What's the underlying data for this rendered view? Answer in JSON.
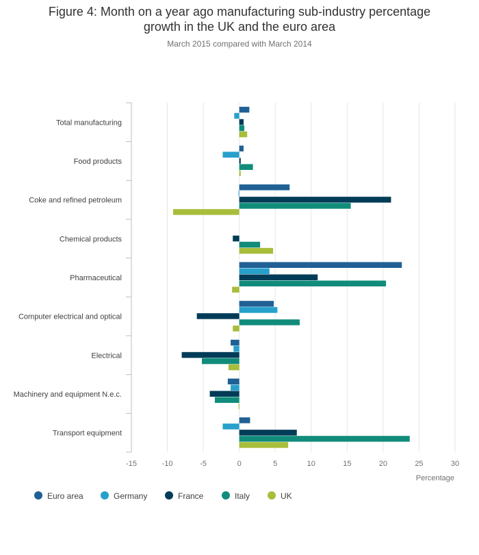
{
  "header": {
    "title_line1": "Figure 4: Month on a year ago manufacturing sub-industry percentage",
    "title_line2": "growth in the UK and the euro area",
    "subtitle": "March 2015 compared with March 2014"
  },
  "chart_data": {
    "type": "bar",
    "orientation": "horizontal",
    "title": "Figure 4: Month on a year ago manufacturing sub-industry percentage growth in the UK and the euro area",
    "subtitle": "March 2015 compared with March 2014",
    "xlabel": "Percentage",
    "ylabel": "",
    "xlim": [
      -15,
      30
    ],
    "xticks": [
      -15,
      -10,
      -5,
      0,
      5,
      10,
      15,
      20,
      25,
      30
    ],
    "grid": true,
    "legend_position": "bottom",
    "categories": [
      "Total manufacturing",
      "Food products",
      "Coke and refined petroleum",
      "Chemical products",
      "Pharmaceutical",
      "Computer electrical and optical",
      "Electrical",
      "Machinery and equipment N.e.c.",
      "Transport equipment"
    ],
    "series": [
      {
        "name": "Euro area",
        "color": "#206095",
        "values": [
          1.4,
          0.6,
          7.0,
          0.0,
          22.6,
          4.8,
          -1.2,
          -1.6,
          1.5
        ]
      },
      {
        "name": "Germany",
        "color": "#27a0cc",
        "values": [
          -0.7,
          -2.3,
          -0.1,
          0.0,
          4.2,
          5.3,
          -0.8,
          -1.2,
          -2.3
        ]
      },
      {
        "name": "France",
        "color": "#003c57",
        "values": [
          0.6,
          0.2,
          21.1,
          -0.9,
          10.9,
          -5.9,
          -8.0,
          -4.1,
          8.0
        ]
      },
      {
        "name": "Italy",
        "color": "#118c7b",
        "values": [
          0.7,
          1.9,
          15.5,
          2.9,
          20.4,
          8.4,
          -5.2,
          -3.4,
          23.7
        ]
      },
      {
        "name": "UK",
        "color": "#a8bd3a",
        "values": [
          1.1,
          0.2,
          -9.2,
          4.7,
          -1.0,
          -0.9,
          -1.5,
          -0.1,
          6.8
        ]
      }
    ]
  }
}
